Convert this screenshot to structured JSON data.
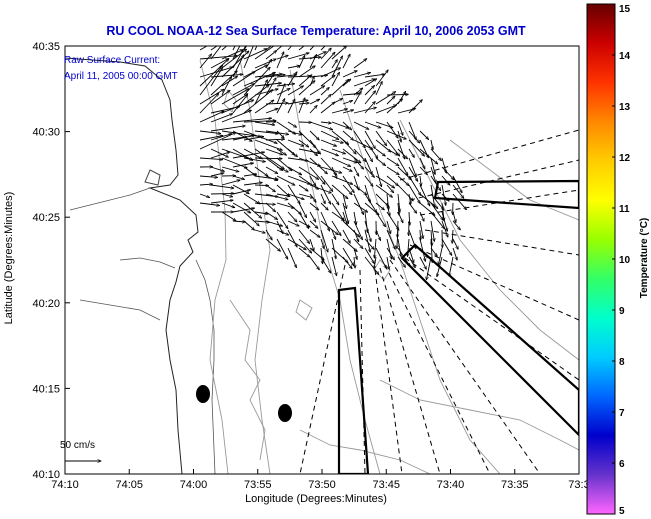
{
  "title": "RU COOL  NOAA-12  Sea Surface Temperature:  April 10, 2006 2053 GMT",
  "annotation": {
    "line1": "Raw Surface Current:",
    "line2": "April 11, 2005 00:00 GMT"
  },
  "scale_label": "50 cm/s",
  "axes": {
    "xlabel": "Longitude (Degrees:Minutes)",
    "ylabel": "Latitude (Degrees:Minutes)",
    "xticks": [
      "74:10",
      "74:05",
      "74:00",
      "73:55",
      "73:50",
      "73:45",
      "73:40",
      "73:35",
      "73:3"
    ],
    "yticks": [
      "40:35",
      "40:30",
      "40:25",
      "40:20",
      "40:15",
      "40:10"
    ]
  },
  "colorbar": {
    "label": "Temperature (°C)",
    "min": 5,
    "max": 15,
    "ticks": [
      "15",
      "14",
      "13",
      "12",
      "11",
      "10",
      "9",
      "8",
      "7",
      "6",
      "5"
    ],
    "colors": [
      "#ff66ff",
      "#6633cc",
      "#0000cc",
      "#0066ff",
      "#00ccff",
      "#00ffcc",
      "#33ff66",
      "#99ff00",
      "#ffff00",
      "#ffcc00",
      "#ff8800",
      "#ff3300",
      "#cc0000",
      "#660000"
    ]
  },
  "chart_data": {
    "type": "map",
    "x_range": [
      "74:10",
      "73:30"
    ],
    "y_range": [
      "40:10",
      "40:35"
    ],
    "features": [
      "coastline",
      "bathymetry contours",
      "surface current vectors",
      "radar sector boundaries",
      "moorings"
    ],
    "current_scale": "50 cm/s"
  }
}
